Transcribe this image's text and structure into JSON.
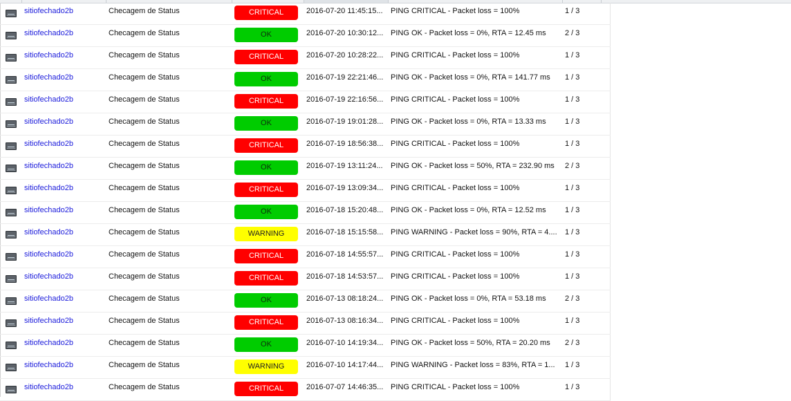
{
  "rows": [
    {
      "host": "sitiofechado2b",
      "service": "Checagem de Status",
      "status": "CRITICAL",
      "status_class": "critical",
      "time": "2016-07-20 11:45:15...",
      "output": "PING CRITICAL - Packet loss = 100%",
      "attempt": "1 / 3"
    },
    {
      "host": "sitiofechado2b",
      "service": "Checagem de Status",
      "status": "OK",
      "status_class": "ok",
      "time": "2016-07-20 10:30:12...",
      "output": "PING OK - Packet loss = 0%, RTA = 12.45 ms",
      "attempt": "2 / 3"
    },
    {
      "host": "sitiofechado2b",
      "service": "Checagem de Status",
      "status": "CRITICAL",
      "status_class": "critical",
      "time": "2016-07-20 10:28:22...",
      "output": "PING CRITICAL - Packet loss = 100%",
      "attempt": "1 / 3"
    },
    {
      "host": "sitiofechado2b",
      "service": "Checagem de Status",
      "status": "OK",
      "status_class": "ok",
      "time": "2016-07-19 22:21:46...",
      "output": "PING OK - Packet loss = 0%, RTA = 141.77 ms",
      "attempt": "1 / 3"
    },
    {
      "host": "sitiofechado2b",
      "service": "Checagem de Status",
      "status": "CRITICAL",
      "status_class": "critical",
      "time": "2016-07-19 22:16:56...",
      "output": "PING CRITICAL - Packet loss = 100%",
      "attempt": "1 / 3"
    },
    {
      "host": "sitiofechado2b",
      "service": "Checagem de Status",
      "status": "OK",
      "status_class": "ok",
      "time": "2016-07-19 19:01:28...",
      "output": "PING OK - Packet loss = 0%, RTA = 13.33 ms",
      "attempt": "1 / 3"
    },
    {
      "host": "sitiofechado2b",
      "service": "Checagem de Status",
      "status": "CRITICAL",
      "status_class": "critical",
      "time": "2016-07-19 18:56:38...",
      "output": "PING CRITICAL - Packet loss = 100%",
      "attempt": "1 / 3"
    },
    {
      "host": "sitiofechado2b",
      "service": "Checagem de Status",
      "status": "OK",
      "status_class": "ok",
      "time": "2016-07-19 13:11:24...",
      "output": "PING OK - Packet loss = 50%, RTA = 232.90 ms",
      "attempt": "2 / 3"
    },
    {
      "host": "sitiofechado2b",
      "service": "Checagem de Status",
      "status": "CRITICAL",
      "status_class": "critical",
      "time": "2016-07-19 13:09:34...",
      "output": "PING CRITICAL - Packet loss = 100%",
      "attempt": "1 / 3"
    },
    {
      "host": "sitiofechado2b",
      "service": "Checagem de Status",
      "status": "OK",
      "status_class": "ok",
      "time": "2016-07-18 15:20:48...",
      "output": "PING OK - Packet loss = 0%, RTA = 12.52 ms",
      "attempt": "1 / 3"
    },
    {
      "host": "sitiofechado2b",
      "service": "Checagem de Status",
      "status": "WARNING",
      "status_class": "warning",
      "time": "2016-07-18 15:15:58...",
      "output": "PING WARNING - Packet loss = 90%, RTA = 4....",
      "attempt": "1 / 3"
    },
    {
      "host": "sitiofechado2b",
      "service": "Checagem de Status",
      "status": "CRITICAL",
      "status_class": "critical",
      "time": "2016-07-18 14:55:57...",
      "output": "PING CRITICAL - Packet loss = 100%",
      "attempt": "1 / 3"
    },
    {
      "host": "sitiofechado2b",
      "service": "Checagem de Status",
      "status": "CRITICAL",
      "status_class": "critical",
      "time": "2016-07-18 14:53:57...",
      "output": "PING CRITICAL - Packet loss = 100%",
      "attempt": "1 / 3"
    },
    {
      "host": "sitiofechado2b",
      "service": "Checagem de Status",
      "status": "OK",
      "status_class": "ok",
      "time": "2016-07-13 08:18:24...",
      "output": "PING OK - Packet loss = 0%, RTA = 53.18 ms",
      "attempt": "2 / 3"
    },
    {
      "host": "sitiofechado2b",
      "service": "Checagem de Status",
      "status": "CRITICAL",
      "status_class": "critical",
      "time": "2016-07-13 08:16:34...",
      "output": "PING CRITICAL - Packet loss = 100%",
      "attempt": "1 / 3"
    },
    {
      "host": "sitiofechado2b",
      "service": "Checagem de Status",
      "status": "OK",
      "status_class": "ok",
      "time": "2016-07-10 14:19:34...",
      "output": "PING OK - Packet loss = 50%, RTA = 20.20 ms",
      "attempt": "2 / 3"
    },
    {
      "host": "sitiofechado2b",
      "service": "Checagem de Status",
      "status": "WARNING",
      "status_class": "warning",
      "time": "2016-07-10 14:17:44...",
      "output": "PING WARNING - Packet loss = 83%, RTA = 1...",
      "attempt": "1 / 3"
    },
    {
      "host": "sitiofechado2b",
      "service": "Checagem de Status",
      "status": "CRITICAL",
      "status_class": "critical",
      "time": "2016-07-07 14:46:35...",
      "output": "PING CRITICAL - Packet loss = 100%",
      "attempt": "1 / 3"
    }
  ],
  "colors": {
    "critical": "#ff0000",
    "ok": "#00cc00",
    "warning": "#ffff00",
    "host_link": "#1a1adb"
  },
  "icons": {
    "row_icon": "host-monitor-icon"
  }
}
